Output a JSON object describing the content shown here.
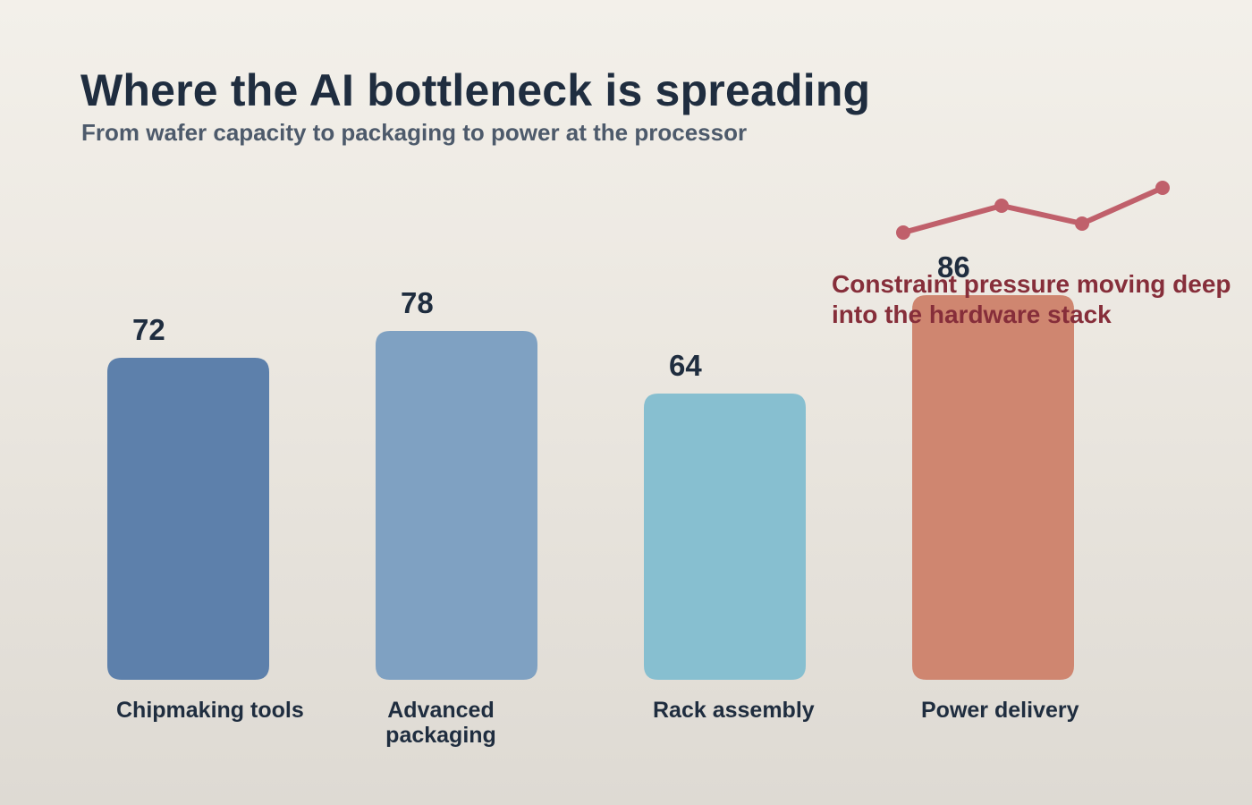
{
  "header": {
    "title": "Where the AI bottleneck is spreading",
    "subtitle": "From wafer capacity to packaging to power at the processor"
  },
  "annotation": {
    "line1": "Constraint pressure moving deep",
    "line2": "into the hardware stack"
  },
  "colors": {
    "title": "#1f2d3f",
    "subtitle": "#4d5a6b",
    "annotation": "#862e3a",
    "trend_line": "#c0606b",
    "bars": [
      "#5d80ab",
      "#7fa1c2",
      "#87bfd0",
      "#cf8670"
    ]
  },
  "chart_data": {
    "type": "bar",
    "title": "Where the AI bottleneck is spreading",
    "subtitle": "From wafer capacity to packaging to power at the processor",
    "categories": [
      "Chipmaking tools",
      "Advanced packaging",
      "Rack assembly",
      "Power delivery"
    ],
    "category_lines": [
      [
        "Chipmaking tools"
      ],
      [
        "Advanced",
        "packaging"
      ],
      [
        "Rack assembly"
      ],
      [
        "Power delivery"
      ]
    ],
    "values": [
      72,
      78,
      64,
      86
    ],
    "value_labels": [
      "72",
      "78",
      "64",
      "86"
    ],
    "xlabel": "",
    "ylabel": "",
    "ylim": [
      0,
      100
    ],
    "grid": false,
    "legend": "none",
    "annotation_text": [
      "Constraint pressure moving deep",
      "into the hardware stack"
    ],
    "trend_line": {
      "type": "line",
      "description_values": [
        1,
        4,
        2,
        6
      ],
      "color": "#c0606b"
    }
  }
}
